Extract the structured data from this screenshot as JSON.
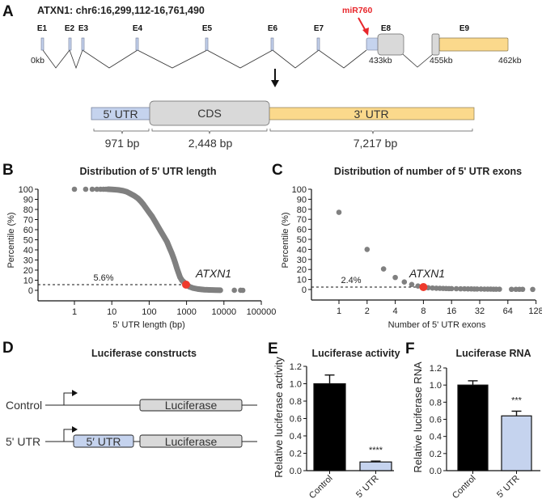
{
  "panel_a": {
    "letter": "A",
    "title": "ATXN1: chr6:16,299,112-16,761,490",
    "exons": [
      "E1",
      "E2",
      "E3",
      "E4",
      "E5",
      "E6",
      "E7",
      "E8",
      "E9"
    ],
    "mirna_label": "miR760",
    "positions": [
      "0kb",
      "433kb",
      "455kb",
      "462kb"
    ],
    "segments": [
      {
        "name": "5' UTR",
        "length": "971 bp"
      },
      {
        "name": "CDS",
        "length": "2,448 bp"
      },
      {
        "name": "3' UTR",
        "length": "7,217 bp"
      }
    ],
    "colors": {
      "utr5": "#c5d3ee",
      "cds": "#d9d9d9",
      "utr3": "#fbd98c",
      "mirna": "#e8262b"
    }
  },
  "panel_d": {
    "letter": "D",
    "title": "Luciferase constructs",
    "rows": [
      {
        "label": "Control",
        "boxes": [
          "Luciferase"
        ]
      },
      {
        "label": "5' UTR",
        "boxes": [
          "5′ UTR",
          "Luciferase"
        ]
      }
    ]
  },
  "chart_data": [
    {
      "panel": "B",
      "type": "scatter",
      "title": "Distribution of 5' UTR length",
      "xlabel": "5' UTR length (bp)",
      "ylabel": "Percentile (%)",
      "xscale": "log10",
      "xlim": [
        1,
        100000
      ],
      "ylim": [
        0,
        100
      ],
      "xticks": [
        "1",
        "10",
        "100",
        "1000",
        "10000",
        "100000"
      ],
      "yticks": [
        "0",
        "10",
        "20",
        "30",
        "40",
        "50",
        "60",
        "70",
        "80",
        "90",
        "100"
      ],
      "points": [
        [
          1,
          100
        ],
        [
          2,
          100
        ],
        [
          3,
          100
        ],
        [
          4,
          100
        ],
        [
          5,
          100
        ],
        [
          6,
          100
        ],
        [
          7,
          100
        ],
        [
          8,
          100
        ],
        [
          10,
          99.8
        ],
        [
          12,
          99.6
        ],
        [
          15,
          99.3
        ],
        [
          20,
          98.5
        ],
        [
          25,
          97.5
        ],
        [
          30,
          96
        ],
        [
          40,
          93.5
        ],
        [
          50,
          91
        ],
        [
          60,
          88
        ],
        [
          70,
          85
        ],
        [
          80,
          82
        ],
        [
          100,
          77
        ],
        [
          120,
          73
        ],
        [
          150,
          67
        ],
        [
          200,
          59
        ],
        [
          250,
          53
        ],
        [
          300,
          48
        ],
        [
          350,
          42
        ],
        [
          400,
          37
        ],
        [
          450,
          32
        ],
        [
          500,
          27
        ],
        [
          550,
          22
        ],
        [
          600,
          18
        ],
        [
          670,
          13
        ],
        [
          750,
          10
        ],
        [
          850,
          8
        ],
        [
          1000,
          5.6
        ],
        [
          1200,
          3.5
        ],
        [
          1500,
          2.2
        ],
        [
          2000,
          1.3
        ],
        [
          2500,
          0.9
        ],
        [
          3000,
          0.6
        ],
        [
          4000,
          0.4
        ],
        [
          5000,
          0.3
        ],
        [
          6000,
          0.2
        ],
        [
          8000,
          0.1
        ],
        [
          19000,
          0.05
        ],
        [
          28000,
          0.03
        ],
        [
          32000,
          0.01
        ]
      ],
      "highlight": {
        "label": "ATXN1",
        "x": 971,
        "y": 5.6
      },
      "reference_line": {
        "y": 5.6,
        "label": "5.6%"
      }
    },
    {
      "panel": "C",
      "type": "scatter",
      "title": "Distribution of number of 5' UTR exons",
      "xlabel": "Number of 5' UTR exons",
      "ylabel": "Percentile (%)",
      "xscale": "log2",
      "xlim": [
        0.5,
        128
      ],
      "ylim": [
        0,
        100
      ],
      "xticks": [
        "1",
        "2",
        "4",
        "8",
        "16",
        "32",
        "64",
        "128"
      ],
      "yticks": [
        "0",
        "10",
        "20",
        "30",
        "40",
        "50",
        "60",
        "70",
        "80",
        "90",
        "100"
      ],
      "points": [
        [
          1,
          77
        ],
        [
          2,
          40
        ],
        [
          3,
          20.5
        ],
        [
          4,
          12
        ],
        [
          5,
          7.5
        ],
        [
          6,
          5
        ],
        [
          7,
          3.5
        ],
        [
          8,
          2.4
        ],
        [
          9,
          1.8
        ],
        [
          10,
          1.5
        ],
        [
          11,
          1.3
        ],
        [
          12,
          1.2
        ],
        [
          13,
          1.1
        ],
        [
          14,
          1
        ],
        [
          15,
          0.9
        ],
        [
          16,
          0.9
        ],
        [
          18,
          0.8
        ],
        [
          20,
          0.7
        ],
        [
          22,
          0.7
        ],
        [
          24,
          0.6
        ],
        [
          26,
          0.6
        ],
        [
          28,
          0.5
        ],
        [
          30,
          0.5
        ],
        [
          33,
          0.5
        ],
        [
          36,
          0.4
        ],
        [
          39,
          0.4
        ],
        [
          42,
          0.4
        ],
        [
          45,
          0.3
        ],
        [
          48,
          0.3
        ],
        [
          52,
          0.3
        ],
        [
          70,
          0.2
        ],
        [
          78,
          0.2
        ],
        [
          85,
          0.2
        ],
        [
          92,
          0.2
        ],
        [
          118,
          0.1
        ]
      ],
      "highlight": {
        "label": "ATXN1",
        "x": 8,
        "y": 2.4
      },
      "reference_line": {
        "y": 2.4,
        "label": "2.4%"
      }
    },
    {
      "panel": "E",
      "type": "bar",
      "title": "Luciferase activity",
      "ylabel": "Relative luciferase activity",
      "categories": [
        "Control",
        "5' UTR"
      ],
      "values": [
        1.0,
        0.1
      ],
      "errors": [
        0.1,
        0.01
      ],
      "colors": [
        "#000000",
        "#c5d3ee"
      ],
      "significance": [
        "",
        "****"
      ],
      "ylim": [
        0,
        1.2
      ],
      "yticks": [
        "0.0",
        "0.2",
        "0.4",
        "0.6",
        "0.8",
        "1.0",
        "1.2"
      ]
    },
    {
      "panel": "F",
      "type": "bar",
      "title": "Luciferase RNA",
      "ylabel": "Relative luciferase RNA",
      "categories": [
        "Control",
        "5' UTR"
      ],
      "values": [
        1.0,
        0.64
      ],
      "errors": [
        0.05,
        0.055
      ],
      "colors": [
        "#000000",
        "#c5d3ee"
      ],
      "significance": [
        "",
        "***"
      ],
      "ylim": [
        0,
        1.2
      ],
      "yticks": [
        "0.0",
        "0.2",
        "0.4",
        "0.6",
        "0.8",
        "1.0",
        "1.2"
      ]
    }
  ]
}
